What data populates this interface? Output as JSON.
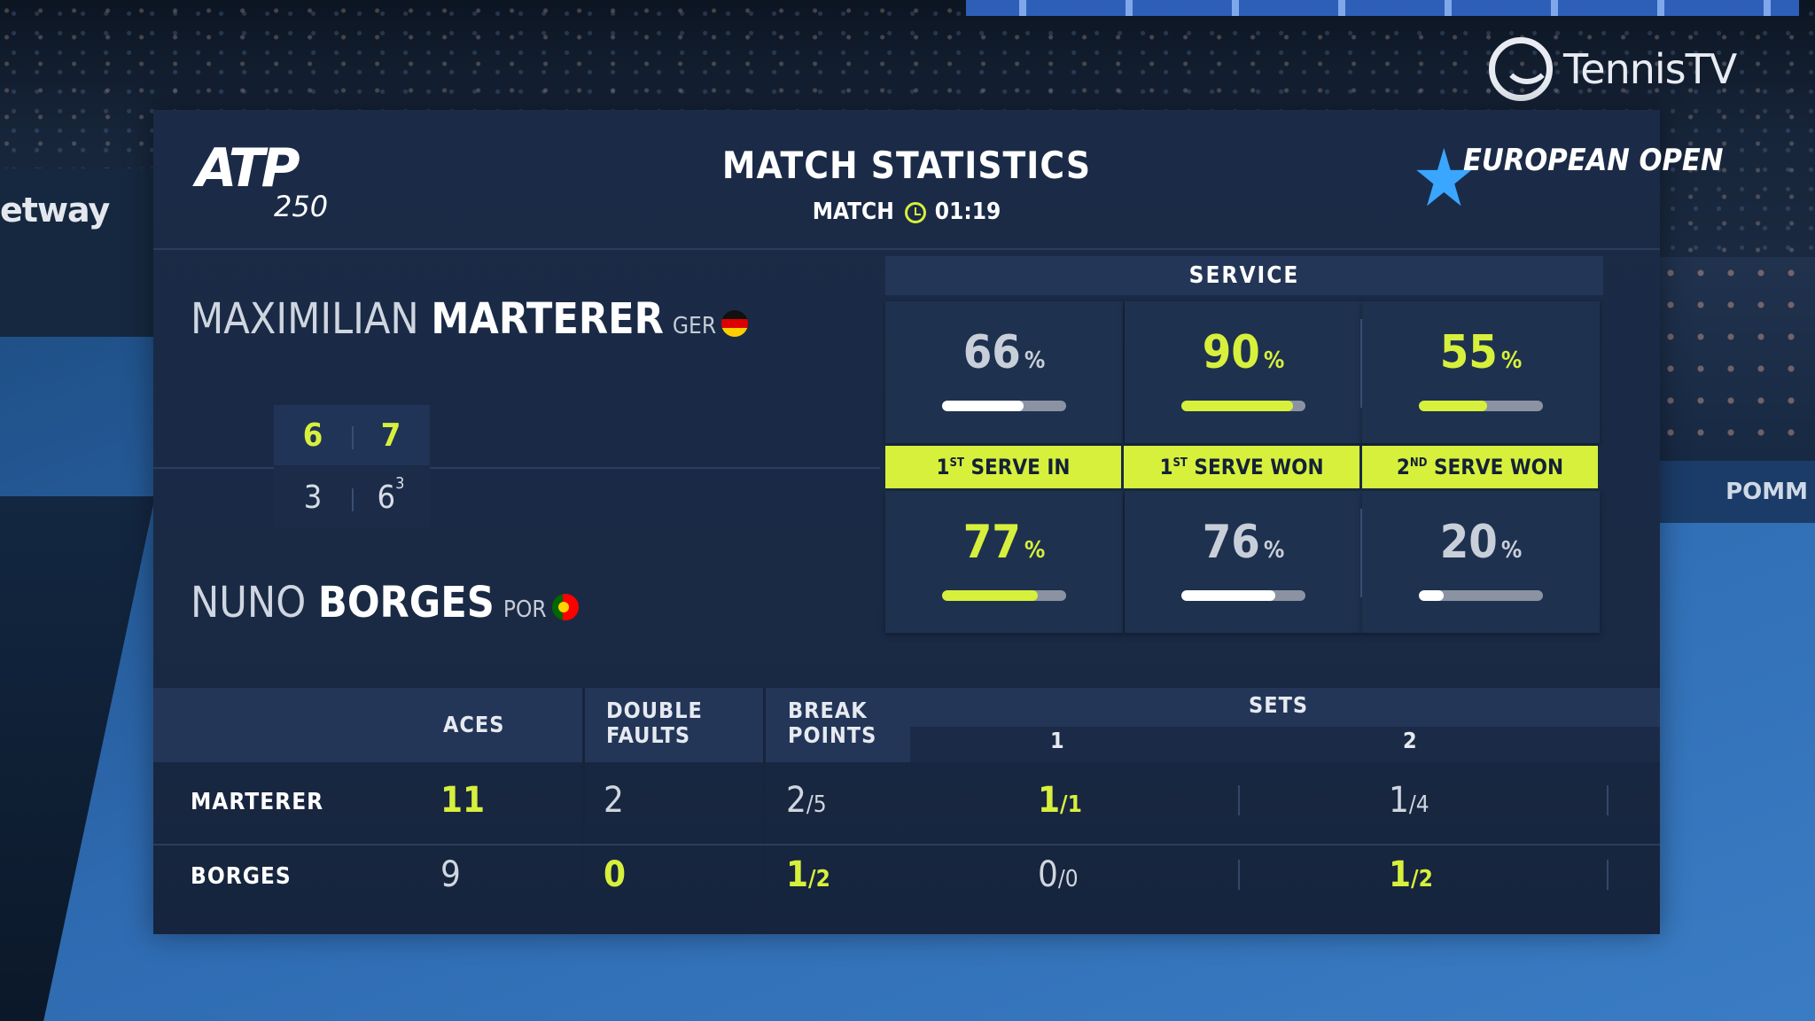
{
  "branding": {
    "broadcaster": "TennisTV",
    "tour_logo": "ATP",
    "tour_level": "250",
    "event_logo": "EUROPEAN OPEN",
    "sponsor": "etway",
    "board_text": "POMM"
  },
  "header": {
    "title": "MATCH STATISTICS",
    "timer_label": "MATCH",
    "timer_icon": "clock-icon",
    "timer_value": "01:19"
  },
  "players": [
    {
      "first": "MAXIMILIAN",
      "last": "MARTERER",
      "nation": "GER"
    },
    {
      "first": "NUNO",
      "last": "BORGES",
      "nation": "POR"
    }
  ],
  "score": {
    "p1_sets": [
      "6",
      "7"
    ],
    "p2_sets": [
      "3",
      "6"
    ],
    "p2_set2_tiebreak": "3"
  },
  "service": {
    "heading": "SERVICE",
    "categories": [
      {
        "label_num": "1",
        "label_suffix": "ST",
        "label_text": "SERVE IN",
        "p1": 66,
        "p2": 77
      },
      {
        "label_num": "1",
        "label_suffix": "ST",
        "label_text": "SERVE WON",
        "p1": 90,
        "p2": 76
      },
      {
        "label_num": "2",
        "label_suffix": "ND",
        "label_text": "SERVE WON",
        "p1": 55,
        "p2": 20
      }
    ],
    "unit": "%"
  },
  "table": {
    "headers": {
      "aces": "ACES",
      "df_1": "DOUBLE",
      "df_2": "FAULTS",
      "bp_1": "BREAK",
      "bp_2": "POINTS",
      "sets": "SETS",
      "set1": "1",
      "set2": "2"
    },
    "rows": [
      {
        "name": "MARTERER",
        "aces": "11",
        "double_faults": "2",
        "bp_won": "2",
        "bp_total": "/5",
        "s1_won": "1",
        "s1_total": "/1",
        "s2_won": "1",
        "s2_total": "/4"
      },
      {
        "name": "BORGES",
        "aces": "9",
        "double_faults": "0",
        "bp_won": "1",
        "bp_total": "/2",
        "s1_won": "0",
        "s1_total": "/0",
        "s2_won": "1",
        "s2_total": "/2"
      }
    ]
  },
  "colors": {
    "accent": "#d7f03c",
    "panel": "#1b2b47",
    "header_band": "#233658"
  }
}
